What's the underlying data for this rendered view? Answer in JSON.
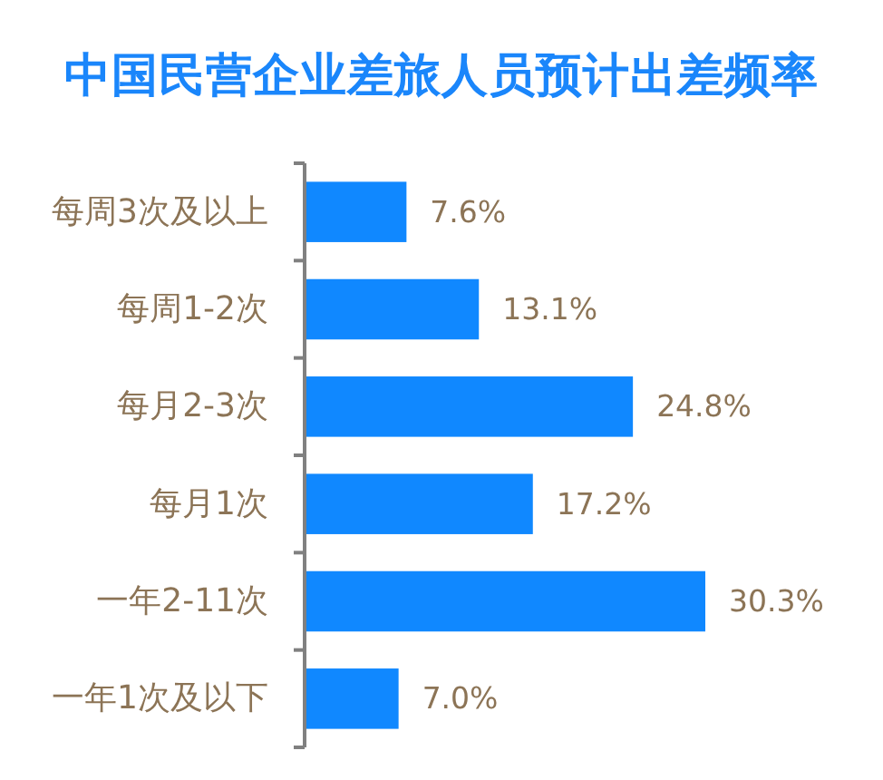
{
  "chart_data": {
    "type": "bar",
    "orientation": "horizontal",
    "title": "中国民营企业差旅人员预计出差频率",
    "categories": [
      "每周3次及以上",
      "每周1-2次",
      "每月2-3次",
      "每月1次",
      "一年2-11次",
      "一年1次及以下"
    ],
    "values": [
      7.6,
      13.1,
      24.8,
      17.2,
      30.3,
      7.0
    ],
    "color": "#1088ff",
    "value_labels": [
      "7.6%",
      "13.1%",
      "24.8%",
      "17.2%",
      "30.3%",
      "7.0%"
    ],
    "tick_labels": "y"
  }
}
